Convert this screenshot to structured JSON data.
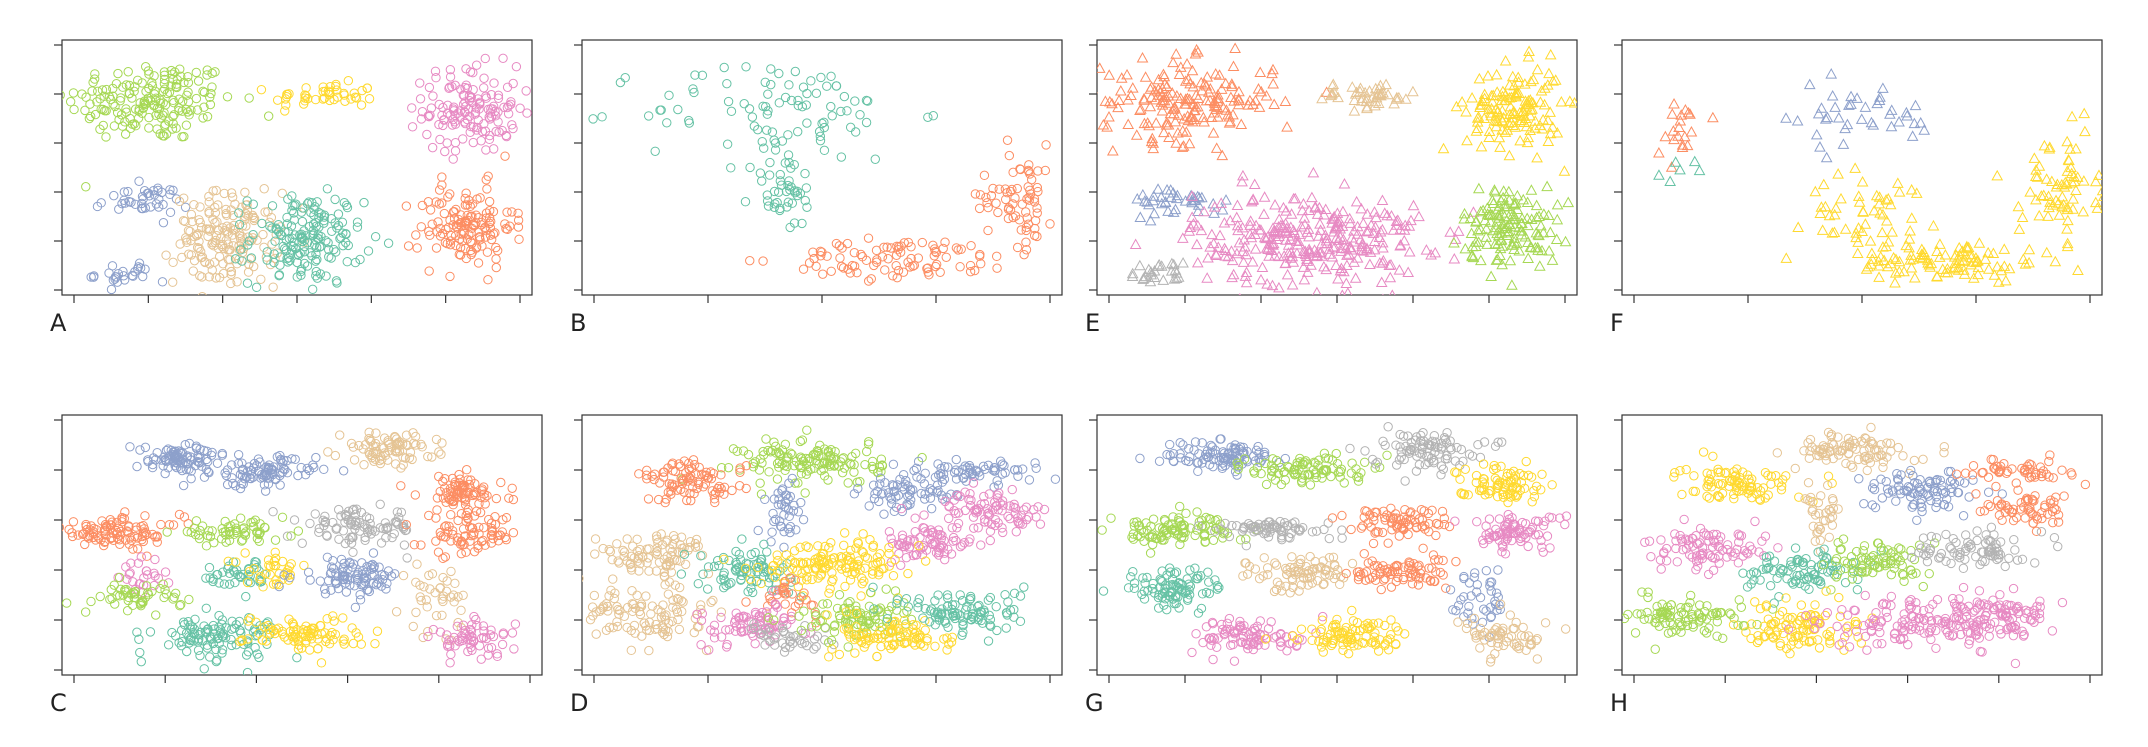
{
  "figure": {
    "panels": [
      "A",
      "B",
      "E",
      "F",
      "C",
      "D",
      "G",
      "H"
    ]
  },
  "palette": {
    "blue": "#8DA0CB",
    "tan": "#E5C494",
    "teal": "#66C2A5",
    "green": "#A6D854",
    "yellow": "#FFD92F",
    "pink": "#E78AC3",
    "orange": "#FC8D62",
    "gray": "#B3B3B3"
  },
  "chart_data": [
    {
      "panel": "A",
      "type": "scatter",
      "marker": "circle",
      "xlim": [
        0,
        10
      ],
      "ylim": [
        0,
        10
      ],
      "xticks": 7,
      "yticks": 6,
      "clusters": [
        {
          "color": "green",
          "cx": 1.9,
          "cy": 7.6,
          "sx": 0.9,
          "sy": 0.8,
          "n": 180
        },
        {
          "color": "yellow",
          "cx": 5.6,
          "cy": 7.8,
          "sx": 0.55,
          "sy": 0.25,
          "n": 45
        },
        {
          "color": "pink",
          "cx": 8.7,
          "cy": 7.3,
          "sx": 0.5,
          "sy": 0.85,
          "n": 140
        },
        {
          "color": "blue",
          "cx": 1.7,
          "cy": 3.7,
          "sx": 0.5,
          "sy": 0.3,
          "n": 40
        },
        {
          "color": "blue",
          "cx": 1.3,
          "cy": 0.8,
          "sx": 0.3,
          "sy": 0.25,
          "n": 25
        },
        {
          "color": "tan",
          "cx": 3.5,
          "cy": 2.2,
          "sx": 0.55,
          "sy": 0.9,
          "n": 170
        },
        {
          "color": "teal",
          "cx": 5.2,
          "cy": 2.2,
          "sx": 0.6,
          "sy": 0.9,
          "n": 170
        },
        {
          "color": "orange",
          "cx": 8.6,
          "cy": 2.7,
          "sx": 0.5,
          "sy": 0.8,
          "n": 140
        }
      ]
    },
    {
      "panel": "B",
      "type": "scatter",
      "marker": "circle",
      "xlim": [
        0,
        10
      ],
      "ylim": [
        0,
        10
      ],
      "xticks": 5,
      "yticks": 6,
      "clusters": [
        {
          "color": "teal",
          "cx": 4.1,
          "cy": 7.2,
          "sx": 1.4,
          "sy": 1.0,
          "n": 90
        },
        {
          "color": "teal",
          "cx": 4.2,
          "cy": 4.1,
          "sx": 0.35,
          "sy": 0.8,
          "n": 45
        },
        {
          "color": "orange",
          "cx": 6.7,
          "cy": 1.4,
          "sx": 1.2,
          "sy": 0.4,
          "n": 90
        },
        {
          "color": "orange",
          "cx": 9.1,
          "cy": 3.9,
          "sx": 0.4,
          "sy": 1.0,
          "n": 70
        }
      ]
    },
    {
      "panel": "E",
      "type": "scatter",
      "marker": "triangle",
      "xlim": [
        0,
        10
      ],
      "ylim": [
        0,
        10
      ],
      "xticks": 7,
      "yticks": 6,
      "clusters": [
        {
          "color": "orange",
          "cx": 1.9,
          "cy": 7.6,
          "sx": 0.9,
          "sy": 0.8,
          "n": 180
        },
        {
          "color": "tan",
          "cx": 5.6,
          "cy": 7.8,
          "sx": 0.55,
          "sy": 0.25,
          "n": 45
        },
        {
          "color": "yellow",
          "cx": 8.7,
          "cy": 7.3,
          "sx": 0.5,
          "sy": 0.85,
          "n": 140
        },
        {
          "color": "blue",
          "cx": 1.7,
          "cy": 3.7,
          "sx": 0.5,
          "sy": 0.3,
          "n": 40
        },
        {
          "color": "gray",
          "cx": 1.3,
          "cy": 0.8,
          "sx": 0.3,
          "sy": 0.25,
          "n": 25
        },
        {
          "color": "pink",
          "cx": 4.4,
          "cy": 2.2,
          "sx": 1.2,
          "sy": 0.9,
          "n": 300
        },
        {
          "color": "green",
          "cx": 8.6,
          "cy": 2.7,
          "sx": 0.5,
          "sy": 0.8,
          "n": 140
        }
      ]
    },
    {
      "panel": "F",
      "type": "scatter",
      "marker": "triangle",
      "xlim": [
        0,
        10
      ],
      "ylim": [
        0,
        10
      ],
      "xticks": 5,
      "yticks": 6,
      "clusters": [
        {
          "color": "orange",
          "cx": 1.2,
          "cy": 6.6,
          "sx": 0.25,
          "sy": 0.6,
          "n": 20
        },
        {
          "color": "blue",
          "cx": 4.8,
          "cy": 7.0,
          "sx": 1.0,
          "sy": 0.7,
          "n": 40
        },
        {
          "color": "teal",
          "cx": 1.6,
          "cy": 4.9,
          "sx": 0.4,
          "sy": 0.2,
          "n": 6
        },
        {
          "color": "yellow",
          "cx": 5.3,
          "cy": 3.0,
          "sx": 0.7,
          "sy": 0.9,
          "n": 60
        },
        {
          "color": "yellow",
          "cx": 6.9,
          "cy": 1.3,
          "sx": 1.0,
          "sy": 0.4,
          "n": 90
        },
        {
          "color": "yellow",
          "cx": 9.1,
          "cy": 4.2,
          "sx": 0.4,
          "sy": 1.0,
          "n": 70
        }
      ]
    },
    {
      "panel": "C",
      "type": "scatter",
      "marker": "circle",
      "xlim": [
        0,
        10
      ],
      "ylim": [
        0,
        10
      ],
      "xticks": 6,
      "yticks": 6,
      "clusters": [
        {
          "color": "blue",
          "cx": 2.5,
          "cy": 8.3,
          "sx": 0.5,
          "sy": 0.3,
          "n": 90
        },
        {
          "color": "blue",
          "cx": 4.2,
          "cy": 7.8,
          "sx": 0.55,
          "sy": 0.3,
          "n": 90
        },
        {
          "color": "tan",
          "cx": 6.8,
          "cy": 8.7,
          "sx": 0.5,
          "sy": 0.3,
          "n": 80
        },
        {
          "color": "orange",
          "cx": 8.3,
          "cy": 7.0,
          "sx": 0.45,
          "sy": 0.35,
          "n": 80
        },
        {
          "color": "orange",
          "cx": 1.2,
          "cy": 5.5,
          "sx": 0.65,
          "sy": 0.3,
          "n": 100
        },
        {
          "color": "green",
          "cx": 3.5,
          "cy": 5.5,
          "sx": 0.6,
          "sy": 0.2,
          "n": 60
        },
        {
          "color": "gray",
          "cx": 6.2,
          "cy": 5.7,
          "sx": 0.6,
          "sy": 0.35,
          "n": 90
        },
        {
          "color": "orange",
          "cx": 8.5,
          "cy": 5.4,
          "sx": 0.5,
          "sy": 0.4,
          "n": 80
        },
        {
          "color": "teal",
          "cx": 3.7,
          "cy": 3.8,
          "sx": 0.35,
          "sy": 0.3,
          "n": 40
        },
        {
          "color": "yellow",
          "cx": 4.5,
          "cy": 4.0,
          "sx": 0.35,
          "sy": 0.3,
          "n": 35
        },
        {
          "color": "blue",
          "cx": 6.0,
          "cy": 3.8,
          "sx": 0.55,
          "sy": 0.35,
          "n": 90
        },
        {
          "color": "pink",
          "cx": 1.7,
          "cy": 3.7,
          "sx": 0.2,
          "sy": 0.3,
          "n": 25
        },
        {
          "color": "green",
          "cx": 1.6,
          "cy": 3.0,
          "sx": 0.45,
          "sy": 0.25,
          "n": 50
        },
        {
          "color": "tan",
          "cx": 7.8,
          "cy": 3.0,
          "sx": 0.3,
          "sy": 0.7,
          "n": 40
        },
        {
          "color": "teal",
          "cx": 3.2,
          "cy": 1.5,
          "sx": 0.65,
          "sy": 0.4,
          "n": 110
        },
        {
          "color": "yellow",
          "cx": 5.0,
          "cy": 1.6,
          "sx": 0.6,
          "sy": 0.35,
          "n": 90
        },
        {
          "color": "pink",
          "cx": 8.6,
          "cy": 1.4,
          "sx": 0.4,
          "sy": 0.35,
          "n": 60
        }
      ]
    },
    {
      "panel": "D",
      "type": "scatter",
      "marker": "circle",
      "xlim": [
        0,
        10
      ],
      "ylim": [
        0,
        10
      ],
      "xticks": 5,
      "yticks": 6,
      "clusters": [
        {
          "color": "green",
          "cx": 4.8,
          "cy": 8.2,
          "sx": 0.75,
          "sy": 0.45,
          "n": 130
        },
        {
          "color": "orange",
          "cx": 2.3,
          "cy": 7.4,
          "sx": 0.55,
          "sy": 0.4,
          "n": 90
        },
        {
          "color": "blue",
          "cx": 4.2,
          "cy": 6.3,
          "sx": 0.2,
          "sy": 0.6,
          "n": 40
        },
        {
          "color": "blue",
          "cx": 6.8,
          "cy": 7.0,
          "sx": 0.5,
          "sy": 0.4,
          "n": 70
        },
        {
          "color": "blue",
          "cx": 8.2,
          "cy": 7.8,
          "sx": 0.65,
          "sy": 0.2,
          "n": 60
        },
        {
          "color": "pink",
          "cx": 8.5,
          "cy": 6.3,
          "sx": 0.6,
          "sy": 0.4,
          "n": 90
        },
        {
          "color": "pink",
          "cx": 7.3,
          "cy": 5.0,
          "sx": 0.5,
          "sy": 0.35,
          "n": 70
        },
        {
          "color": "tan",
          "cx": 1.5,
          "cy": 4.6,
          "sx": 0.6,
          "sy": 0.45,
          "n": 90
        },
        {
          "color": "teal",
          "cx": 3.4,
          "cy": 4.0,
          "sx": 0.5,
          "sy": 0.4,
          "n": 80
        },
        {
          "color": "yellow",
          "cx": 5.3,
          "cy": 4.3,
          "sx": 0.8,
          "sy": 0.45,
          "n": 140
        },
        {
          "color": "orange",
          "cx": 4.3,
          "cy": 3.1,
          "sx": 0.3,
          "sy": 0.4,
          "n": 30
        },
        {
          "color": "tan",
          "cx": 1.3,
          "cy": 2.3,
          "sx": 0.65,
          "sy": 0.5,
          "n": 100
        },
        {
          "color": "pink",
          "cx": 3.6,
          "cy": 1.9,
          "sx": 0.55,
          "sy": 0.4,
          "n": 80
        },
        {
          "color": "gray",
          "cx": 4.3,
          "cy": 1.4,
          "sx": 0.45,
          "sy": 0.3,
          "n": 40
        },
        {
          "color": "green",
          "cx": 5.6,
          "cy": 2.2,
          "sx": 0.55,
          "sy": 0.4,
          "n": 90
        },
        {
          "color": "yellow",
          "cx": 6.6,
          "cy": 1.5,
          "sx": 0.6,
          "sy": 0.4,
          "n": 90
        },
        {
          "color": "teal",
          "cx": 8.0,
          "cy": 2.4,
          "sx": 0.6,
          "sy": 0.45,
          "n": 100
        }
      ]
    },
    {
      "panel": "G",
      "type": "scatter",
      "marker": "circle",
      "xlim": [
        0,
        10
      ],
      "ylim": [
        0,
        10
      ],
      "xticks": 7,
      "yticks": 6,
      "clusters": [
        {
          "color": "blue",
          "cx": 2.6,
          "cy": 8.4,
          "sx": 0.6,
          "sy": 0.3,
          "n": 100
        },
        {
          "color": "green",
          "cx": 4.4,
          "cy": 7.9,
          "sx": 0.6,
          "sy": 0.3,
          "n": 90
        },
        {
          "color": "gray",
          "cx": 6.8,
          "cy": 8.7,
          "sx": 0.55,
          "sy": 0.35,
          "n": 90
        },
        {
          "color": "yellow",
          "cx": 8.4,
          "cy": 7.4,
          "sx": 0.45,
          "sy": 0.35,
          "n": 80
        },
        {
          "color": "green",
          "cx": 1.6,
          "cy": 5.6,
          "sx": 0.65,
          "sy": 0.3,
          "n": 100
        },
        {
          "color": "gray",
          "cx": 3.6,
          "cy": 5.6,
          "sx": 0.7,
          "sy": 0.2,
          "n": 70
        },
        {
          "color": "orange",
          "cx": 6.3,
          "cy": 5.9,
          "sx": 0.5,
          "sy": 0.3,
          "n": 80
        },
        {
          "color": "pink",
          "cx": 8.7,
          "cy": 5.5,
          "sx": 0.5,
          "sy": 0.35,
          "n": 80
        },
        {
          "color": "teal",
          "cx": 1.6,
          "cy": 3.3,
          "sx": 0.5,
          "sy": 0.4,
          "n": 90
        },
        {
          "color": "tan",
          "cx": 4.2,
          "cy": 3.9,
          "sx": 0.55,
          "sy": 0.35,
          "n": 80
        },
        {
          "color": "orange",
          "cx": 6.3,
          "cy": 3.9,
          "sx": 0.5,
          "sy": 0.3,
          "n": 80
        },
        {
          "color": "blue",
          "cx": 8.0,
          "cy": 3.0,
          "sx": 0.3,
          "sy": 0.7,
          "n": 40
        },
        {
          "color": "pink",
          "cx": 3.3,
          "cy": 1.5,
          "sx": 0.6,
          "sy": 0.35,
          "n": 90
        },
        {
          "color": "yellow",
          "cx": 5.3,
          "cy": 1.5,
          "sx": 0.6,
          "sy": 0.35,
          "n": 90
        },
        {
          "color": "tan",
          "cx": 8.6,
          "cy": 1.4,
          "sx": 0.45,
          "sy": 0.35,
          "n": 60
        }
      ]
    },
    {
      "panel": "H",
      "type": "scatter",
      "marker": "circle",
      "xlim": [
        0,
        10
      ],
      "ylim": [
        0,
        10
      ],
      "xticks": 6,
      "yticks": 6,
      "clusters": [
        {
          "color": "tan",
          "cx": 4.8,
          "cy": 8.6,
          "sx": 0.6,
          "sy": 0.35,
          "n": 90
        },
        {
          "color": "yellow",
          "cx": 2.4,
          "cy": 7.4,
          "sx": 0.6,
          "sy": 0.35,
          "n": 90
        },
        {
          "color": "blue",
          "cx": 6.2,
          "cy": 7.1,
          "sx": 0.55,
          "sy": 0.4,
          "n": 90
        },
        {
          "color": "orange",
          "cx": 8.3,
          "cy": 7.9,
          "sx": 0.5,
          "sy": 0.2,
          "n": 50
        },
        {
          "color": "orange",
          "cx": 8.4,
          "cy": 6.3,
          "sx": 0.5,
          "sy": 0.3,
          "n": 60
        },
        {
          "color": "tan",
          "cx": 4.2,
          "cy": 6.0,
          "sx": 0.2,
          "sy": 0.6,
          "n": 35
        },
        {
          "color": "pink",
          "cx": 1.8,
          "cy": 4.8,
          "sx": 0.6,
          "sy": 0.4,
          "n": 90
        },
        {
          "color": "teal",
          "cx": 3.7,
          "cy": 4.0,
          "sx": 0.6,
          "sy": 0.4,
          "n": 90
        },
        {
          "color": "green",
          "cx": 5.4,
          "cy": 4.3,
          "sx": 0.55,
          "sy": 0.4,
          "n": 80
        },
        {
          "color": "gray",
          "cx": 7.3,
          "cy": 4.9,
          "sx": 0.55,
          "sy": 0.35,
          "n": 80
        },
        {
          "color": "green",
          "cx": 1.3,
          "cy": 2.3,
          "sx": 0.65,
          "sy": 0.4,
          "n": 100
        },
        {
          "color": "yellow",
          "cx": 3.7,
          "cy": 1.8,
          "sx": 0.6,
          "sy": 0.45,
          "n": 100
        },
        {
          "color": "pink",
          "cx": 6.3,
          "cy": 2.0,
          "sx": 1.0,
          "sy": 0.5,
          "n": 150
        },
        {
          "color": "pink",
          "cx": 8.0,
          "cy": 2.4,
          "sx": 0.6,
          "sy": 0.4,
          "n": 80
        }
      ]
    }
  ]
}
